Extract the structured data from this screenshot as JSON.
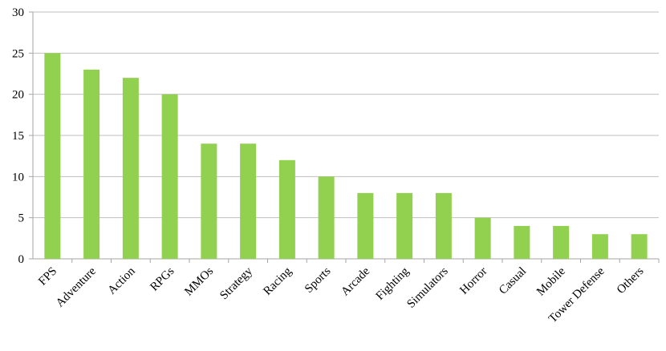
{
  "chart_data": {
    "type": "bar",
    "categories": [
      "FPS",
      "Adventure",
      "Action",
      "RPGs",
      "MMOs",
      "Strategy",
      "Racing",
      "Sports",
      "Arcade",
      "Fighting",
      "Simulators",
      "Horror",
      "Casual",
      "Mobile",
      "Tower Defense",
      "Others"
    ],
    "values": [
      25,
      23,
      22,
      20,
      14,
      14,
      12,
      10,
      8,
      8,
      8,
      5,
      4,
      4,
      3,
      3
    ],
    "color": "#92d050",
    "ylim": [
      0,
      30
    ],
    "yticks": [
      0,
      5,
      10,
      15,
      20,
      25,
      30
    ],
    "grid": true
  }
}
